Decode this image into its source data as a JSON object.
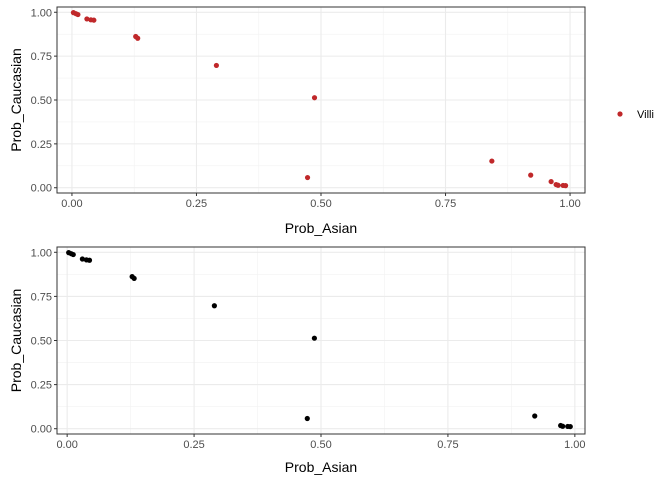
{
  "chart_data": [
    {
      "type": "scatter",
      "xlabel": "Prob_Asian",
      "ylabel": "Prob_Caucasian",
      "xlim": [
        -0.03,
        1.03
      ],
      "ylim": [
        -0.03,
        1.03
      ],
      "x_ticks": [
        "0.00",
        "0.25",
        "0.50",
        "0.75",
        "1.00"
      ],
      "y_ticks": [
        "0.00",
        "0.25",
        "0.50",
        "0.75",
        "1.00"
      ],
      "grid": true,
      "legend": {
        "position": "right",
        "entries": [
          {
            "label": "Villi",
            "color": "#c0282a"
          }
        ]
      },
      "series": [
        {
          "name": "Villi",
          "color": "#c0282a",
          "x": [
            0.003,
            0.008,
            0.012,
            0.03,
            0.038,
            0.044,
            0.128,
            0.132,
            0.29,
            0.473,
            0.487,
            0.843,
            0.921,
            0.962,
            0.972,
            0.976,
            0.986,
            0.991
          ],
          "y": [
            0.998,
            0.992,
            0.987,
            0.962,
            0.957,
            0.955,
            0.862,
            0.852,
            0.697,
            0.058,
            0.513,
            0.152,
            0.072,
            0.035,
            0.018,
            0.014,
            0.013,
            0.012
          ]
        }
      ]
    },
    {
      "type": "scatter",
      "xlabel": "Prob_Asian",
      "ylabel": "Prob_Caucasian",
      "xlim": [
        -0.02,
        1.02
      ],
      "ylim": [
        -0.03,
        1.03
      ],
      "x_ticks": [
        "0.00",
        "0.25",
        "0.50",
        "0.75",
        "1.00"
      ],
      "y_ticks": [
        "0.00",
        "0.25",
        "0.50",
        "0.75",
        "1.00"
      ],
      "grid": true,
      "series": [
        {
          "color": "#000000",
          "x": [
            0.003,
            0.008,
            0.012,
            0.03,
            0.038,
            0.044,
            0.128,
            0.132,
            0.29,
            0.473,
            0.487,
            0.921,
            0.972,
            0.976,
            0.986,
            0.991
          ],
          "y": [
            0.998,
            0.992,
            0.987,
            0.962,
            0.957,
            0.955,
            0.862,
            0.852,
            0.697,
            0.058,
            0.513,
            0.072,
            0.018,
            0.014,
            0.013,
            0.012
          ]
        }
      ]
    }
  ]
}
